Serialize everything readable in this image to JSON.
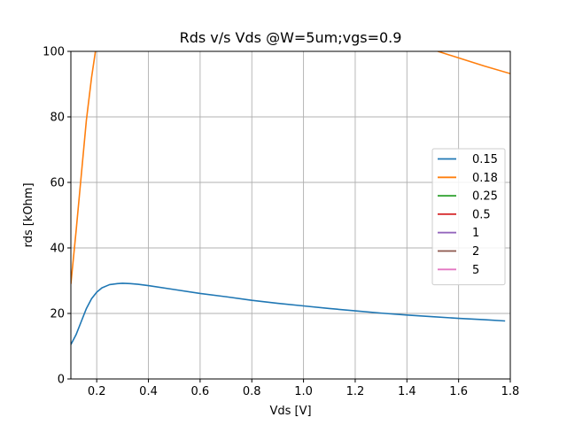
{
  "chart_data": {
    "type": "line",
    "title": "Rds v/s Vds @W=5um;vgs=0.9",
    "xlabel": "Vds [V]",
    "ylabel": "rds [kOhm]",
    "xlim": [
      0.1,
      1.8
    ],
    "ylim": [
      0,
      100
    ],
    "xticks": [
      0.2,
      0.4,
      0.6,
      0.8,
      1.0,
      1.2,
      1.4,
      1.6,
      1.8
    ],
    "xtick_labels": [
      "0.2",
      "0.4",
      "0.6",
      "0.8",
      "1.0",
      "1.2",
      "1.4",
      "1.6",
      "1.8"
    ],
    "yticks": [
      0,
      20,
      40,
      60,
      80,
      100
    ],
    "ytick_labels": [
      "0",
      "20",
      "40",
      "60",
      "80",
      "100"
    ],
    "grid": true,
    "legend_position": "right",
    "series": [
      {
        "name": "0.15",
        "color": "#1f77b4",
        "x": [
          0.1,
          0.12,
          0.14,
          0.16,
          0.18,
          0.2,
          0.22,
          0.25,
          0.28,
          0.3,
          0.33,
          0.36,
          0.4,
          0.5,
          0.6,
          0.7,
          0.8,
          0.9,
          1.0,
          1.1,
          1.2,
          1.3,
          1.4,
          1.5,
          1.6,
          1.7,
          1.78
        ],
        "y": [
          10.5,
          13.5,
          17.5,
          21.5,
          24.5,
          26.5,
          27.8,
          28.8,
          29.1,
          29.2,
          29.1,
          28.9,
          28.5,
          27.3,
          26.1,
          25.1,
          24.0,
          23.1,
          22.3,
          21.5,
          20.8,
          20.1,
          19.5,
          19.0,
          18.5,
          18.1,
          17.7
        ]
      },
      {
        "name": "0.18",
        "color": "#ff7f0e",
        "x": [
          0.1,
          0.12,
          0.14,
          0.16,
          0.18,
          0.195,
          0.21
        ],
        "y": [
          29,
          45,
          62,
          79,
          92,
          100,
          106
        ]
      },
      {
        "name": "0.18",
        "color": "#ff7f0e",
        "x": [
          1.48,
          1.52,
          1.6,
          1.7,
          1.8
        ],
        "y": [
          102,
          100,
          98,
          95.5,
          93.2
        ]
      },
      {
        "name": "0.25",
        "color": "#2ca02c",
        "x": [],
        "y": []
      },
      {
        "name": "0.5",
        "color": "#d62728",
        "x": [],
        "y": []
      },
      {
        "name": "1",
        "color": "#9467bd",
        "x": [],
        "y": []
      },
      {
        "name": "2",
        "color": "#8c564b",
        "x": [],
        "y": []
      },
      {
        "name": "5",
        "color": "#e377c2",
        "x": [],
        "y": []
      }
    ]
  }
}
